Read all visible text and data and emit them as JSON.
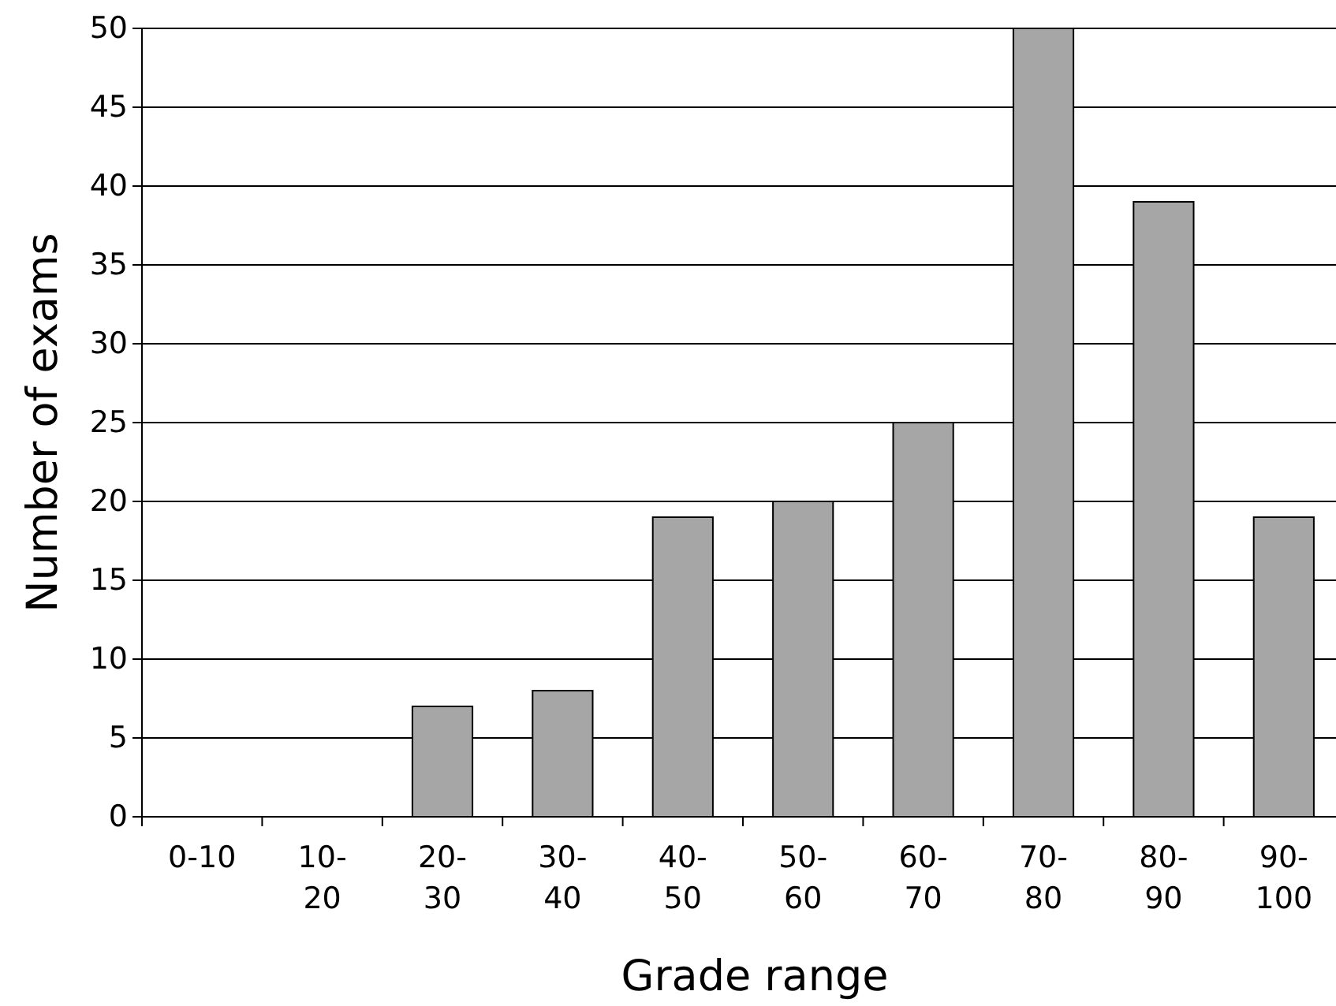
{
  "chart_data": {
    "type": "bar",
    "categories": [
      "0-10",
      "10-20",
      "20-30",
      "30-40",
      "40-50",
      "50-60",
      "60-70",
      "70-80",
      "80-90",
      "90-100"
    ],
    "values": [
      0,
      0,
      7,
      8,
      19,
      20,
      25,
      50,
      39,
      19
    ],
    "color": "#a6a6a6",
    "xlabel": "Grade range",
    "ylabel": "Number of exams",
    "ylim": [
      0,
      50
    ],
    "yticks": [
      0,
      5,
      10,
      15,
      20,
      25,
      30,
      35,
      40,
      45,
      50
    ],
    "grid": "y"
  }
}
